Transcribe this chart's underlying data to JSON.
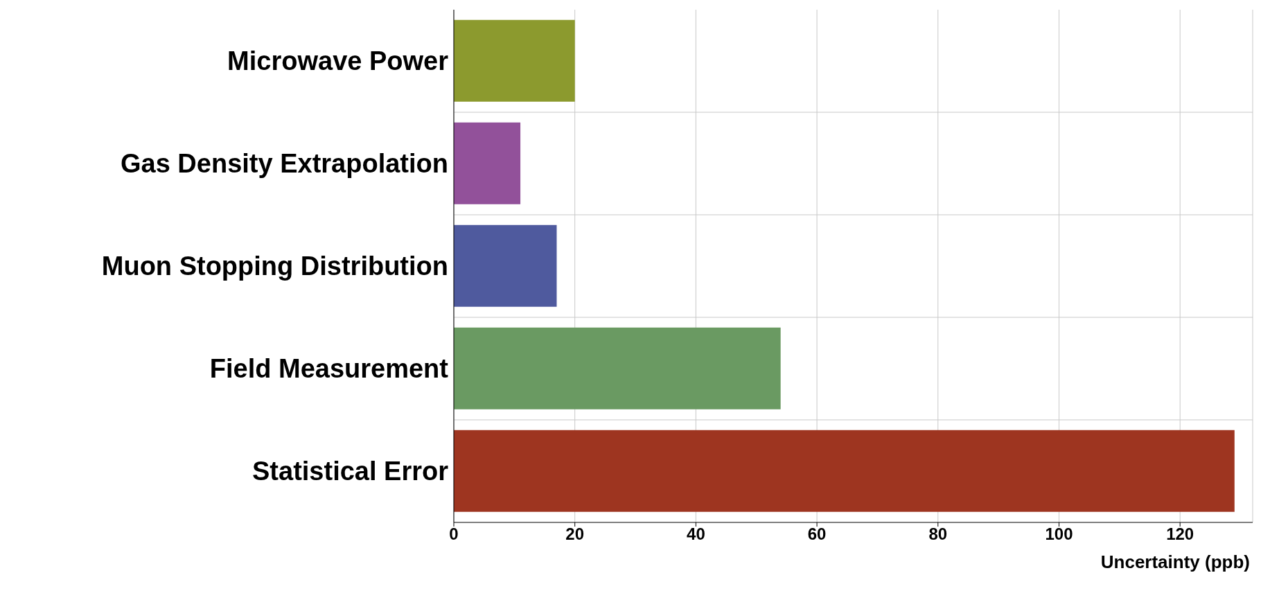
{
  "chart_data": {
    "type": "bar",
    "orientation": "horizontal",
    "xlabel": "Uncertainty (ppb)",
    "categories": [
      "Microwave Power",
      "Gas Density Extrapolation",
      "Muon Stopping Distribution",
      "Field Measurement",
      "Statistical Error"
    ],
    "values": [
      20,
      11,
      17,
      54,
      129
    ],
    "colors": [
      "#8c9a2e",
      "#92519a",
      "#4f5a9e",
      "#6a9a62",
      "#9e3520"
    ],
    "xlim": [
      0,
      132
    ],
    "xticks": [
      0,
      20,
      40,
      60,
      80,
      100,
      120
    ],
    "grid": true
  }
}
